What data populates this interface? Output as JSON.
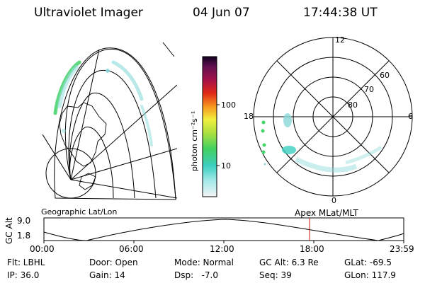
{
  "header": {
    "title": "Ultraviolet Imager",
    "date": "04 Jun 07",
    "time": "17:44:38 UT"
  },
  "left_panel": {
    "caption": "Geographic Lat/Lon"
  },
  "colorbar": {
    "unit_label": "photon cm⁻²s⁻¹",
    "ticks": [
      "100",
      "10"
    ]
  },
  "right_panel": {
    "caption": "Apex  MLat/MLT",
    "mlt_labels": {
      "top": "12",
      "left": "18",
      "right": "6",
      "bottom": "0"
    },
    "lat_labels": [
      "60",
      "70",
      "80"
    ]
  },
  "altitude_plot": {
    "ylabel": "GC Alt",
    "yticks": [
      "9.0",
      "1.8"
    ],
    "xticks": [
      "00:00",
      "06:00",
      "12:00",
      "18:00",
      "23:59"
    ],
    "marker_time": "17:44",
    "marker_color": "#d01010"
  },
  "status": {
    "row1": [
      {
        "key": "flt",
        "text": "Flt: LBHL"
      },
      {
        "key": "door",
        "text": "Door: Open"
      },
      {
        "key": "mode",
        "text": "Mode: Normal"
      },
      {
        "key": "gcalt",
        "text": "GC Alt: 6.3 Re"
      },
      {
        "key": "glat",
        "text": "GLat: -69.5"
      }
    ],
    "row2": [
      {
        "key": "ip",
        "text": "IP: 36.0"
      },
      {
        "key": "gain",
        "text": "Gain: 14"
      },
      {
        "key": "dsp",
        "text": "Dsp:   -7.0"
      },
      {
        "key": "seq",
        "text": "Seq: 39"
      },
      {
        "key": "glon",
        "text": "GLon: 117.9"
      }
    ]
  },
  "colors": {
    "aurora_green": "#44d36a",
    "aurora_cyan": "#8ad8d8",
    "marker": "#d01010"
  }
}
